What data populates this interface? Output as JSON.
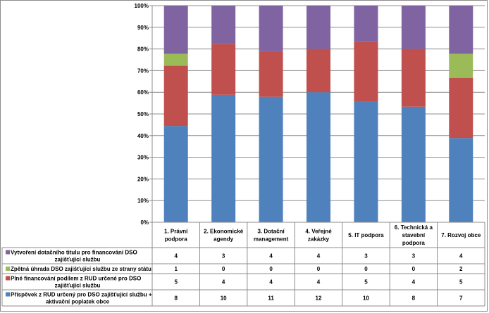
{
  "chart_data": {
    "type": "bar",
    "stacked_percent": true,
    "categories": [
      [
        "1.  Právní",
        "podpora"
      ],
      [
        "2. Ekonomické",
        "agendy"
      ],
      [
        "3. Dotační",
        "management"
      ],
      [
        "4. Veřejné",
        "zakázky"
      ],
      [
        "5.  IT podpora"
      ],
      [
        "6. Technická a",
        "stavební",
        "podpora"
      ],
      [
        "7. Rozvoj obce"
      ]
    ],
    "yticks": [
      "0%",
      "10%",
      "20%",
      "30%",
      "40%",
      "50%",
      "60%",
      "70%",
      "80%",
      "90%",
      "100%"
    ],
    "ylim": [
      0,
      100
    ],
    "series_bottom_to_top": [
      {
        "name": "Příspěvek z RUD určený pro DSO zajišťující službu + aktivační poplatek obce",
        "lines": [
          "Příspěvek z RUD určený pro DSO zajišťující službu +",
          "aktivační poplatek obce"
        ],
        "color": "#4f81bd",
        "values": [
          8,
          10,
          11,
          12,
          10,
          8,
          7
        ]
      },
      {
        "name": "Plné financování podílem z RUD určené pro DSO zajišťující službu",
        "lines": [
          "Plné financování podílem z RUD určené pro DSO",
          "zajišťující službu"
        ],
        "color": "#c0504d",
        "values": [
          5,
          4,
          4,
          4,
          5,
          4,
          5
        ]
      },
      {
        "name": "Zpětná úhrada DSO zajišťující službu ze strany státu",
        "lines": [
          "Zpětná úhrada DSO zajišťující službu ze strany státu"
        ],
        "color": "#9bbb59",
        "values": [
          1,
          0,
          0,
          0,
          0,
          0,
          2
        ]
      },
      {
        "name": "Vytvoření dotačního titulu pro financování DSO zajišťující službu",
        "lines": [
          "Vytvoření dotačního titulu pro financování DSO",
          "zajišťující službu"
        ],
        "color": "#8064a2",
        "values": [
          4,
          3,
          4,
          4,
          3,
          3,
          4
        ]
      }
    ],
    "table_row_order": [
      3,
      2,
      1,
      0
    ],
    "grid": true,
    "legend": "data-table"
  }
}
